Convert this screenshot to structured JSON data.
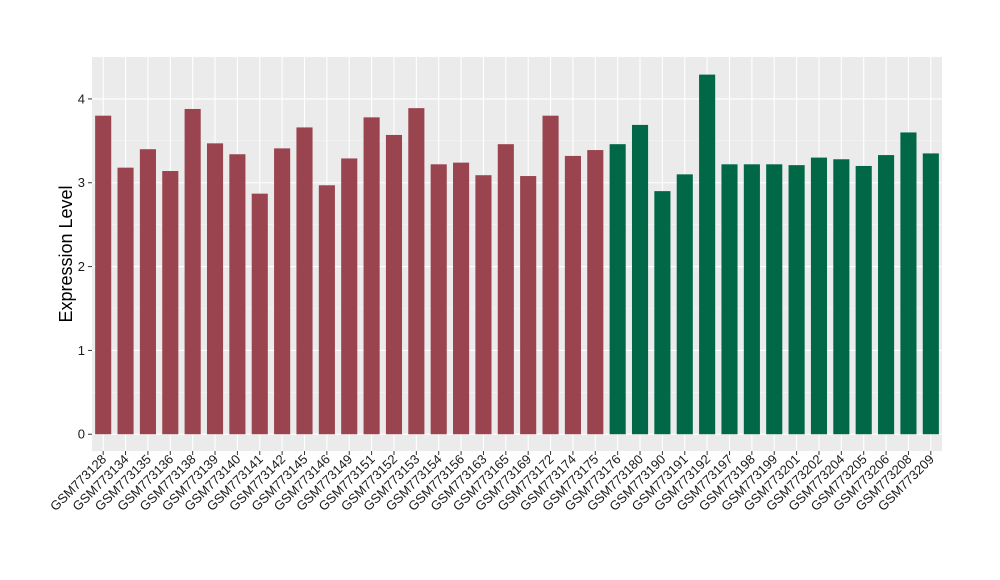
{
  "chart_data": {
    "type": "bar",
    "title": "",
    "xlabel": "",
    "ylabel": "Expression Level",
    "ylim": [
      -0.2,
      4.5
    ],
    "yticks": [
      0,
      1,
      2,
      3,
      4
    ],
    "grid": true,
    "background": "#EBEBEB",
    "categories": [
      "GSM773128",
      "GSM773134",
      "GSM773135",
      "GSM773136",
      "GSM773138",
      "GSM773139",
      "GSM773140",
      "GSM773141",
      "GSM773142",
      "GSM773145",
      "GSM773146",
      "GSM773149",
      "GSM773151",
      "GSM773152",
      "GSM773153",
      "GSM773154",
      "GSM773156",
      "GSM773163",
      "GSM773165",
      "GSM773169",
      "GSM773172",
      "GSM773174",
      "GSM773175",
      "GSM773176",
      "GSM773180",
      "GSM773190",
      "GSM773191",
      "GSM773192",
      "GSM773197",
      "GSM773198",
      "GSM773199",
      "GSM773201",
      "GSM773202",
      "GSM773204",
      "GSM773205",
      "GSM773206",
      "GSM773208",
      "GSM773209"
    ],
    "values": [
      3.8,
      3.18,
      3.4,
      3.14,
      3.88,
      3.47,
      3.34,
      2.87,
      3.41,
      3.66,
      2.97,
      3.29,
      3.78,
      3.57,
      3.89,
      3.22,
      3.24,
      3.09,
      3.46,
      3.08,
      3.8,
      3.32,
      3.39,
      3.46,
      3.69,
      2.9,
      3.1,
      4.29,
      3.22,
      3.22,
      3.22,
      3.21,
      3.3,
      3.28,
      3.2,
      3.33,
      3.6,
      3.35
    ],
    "groups": [
      0,
      0,
      0,
      0,
      0,
      0,
      0,
      0,
      0,
      0,
      0,
      0,
      0,
      0,
      0,
      0,
      0,
      0,
      0,
      0,
      0,
      0,
      0,
      1,
      1,
      1,
      1,
      1,
      1,
      1,
      1,
      1,
      1,
      1,
      1,
      1,
      1,
      1
    ],
    "group_colors": [
      "#9A4450",
      "#006747"
    ]
  }
}
